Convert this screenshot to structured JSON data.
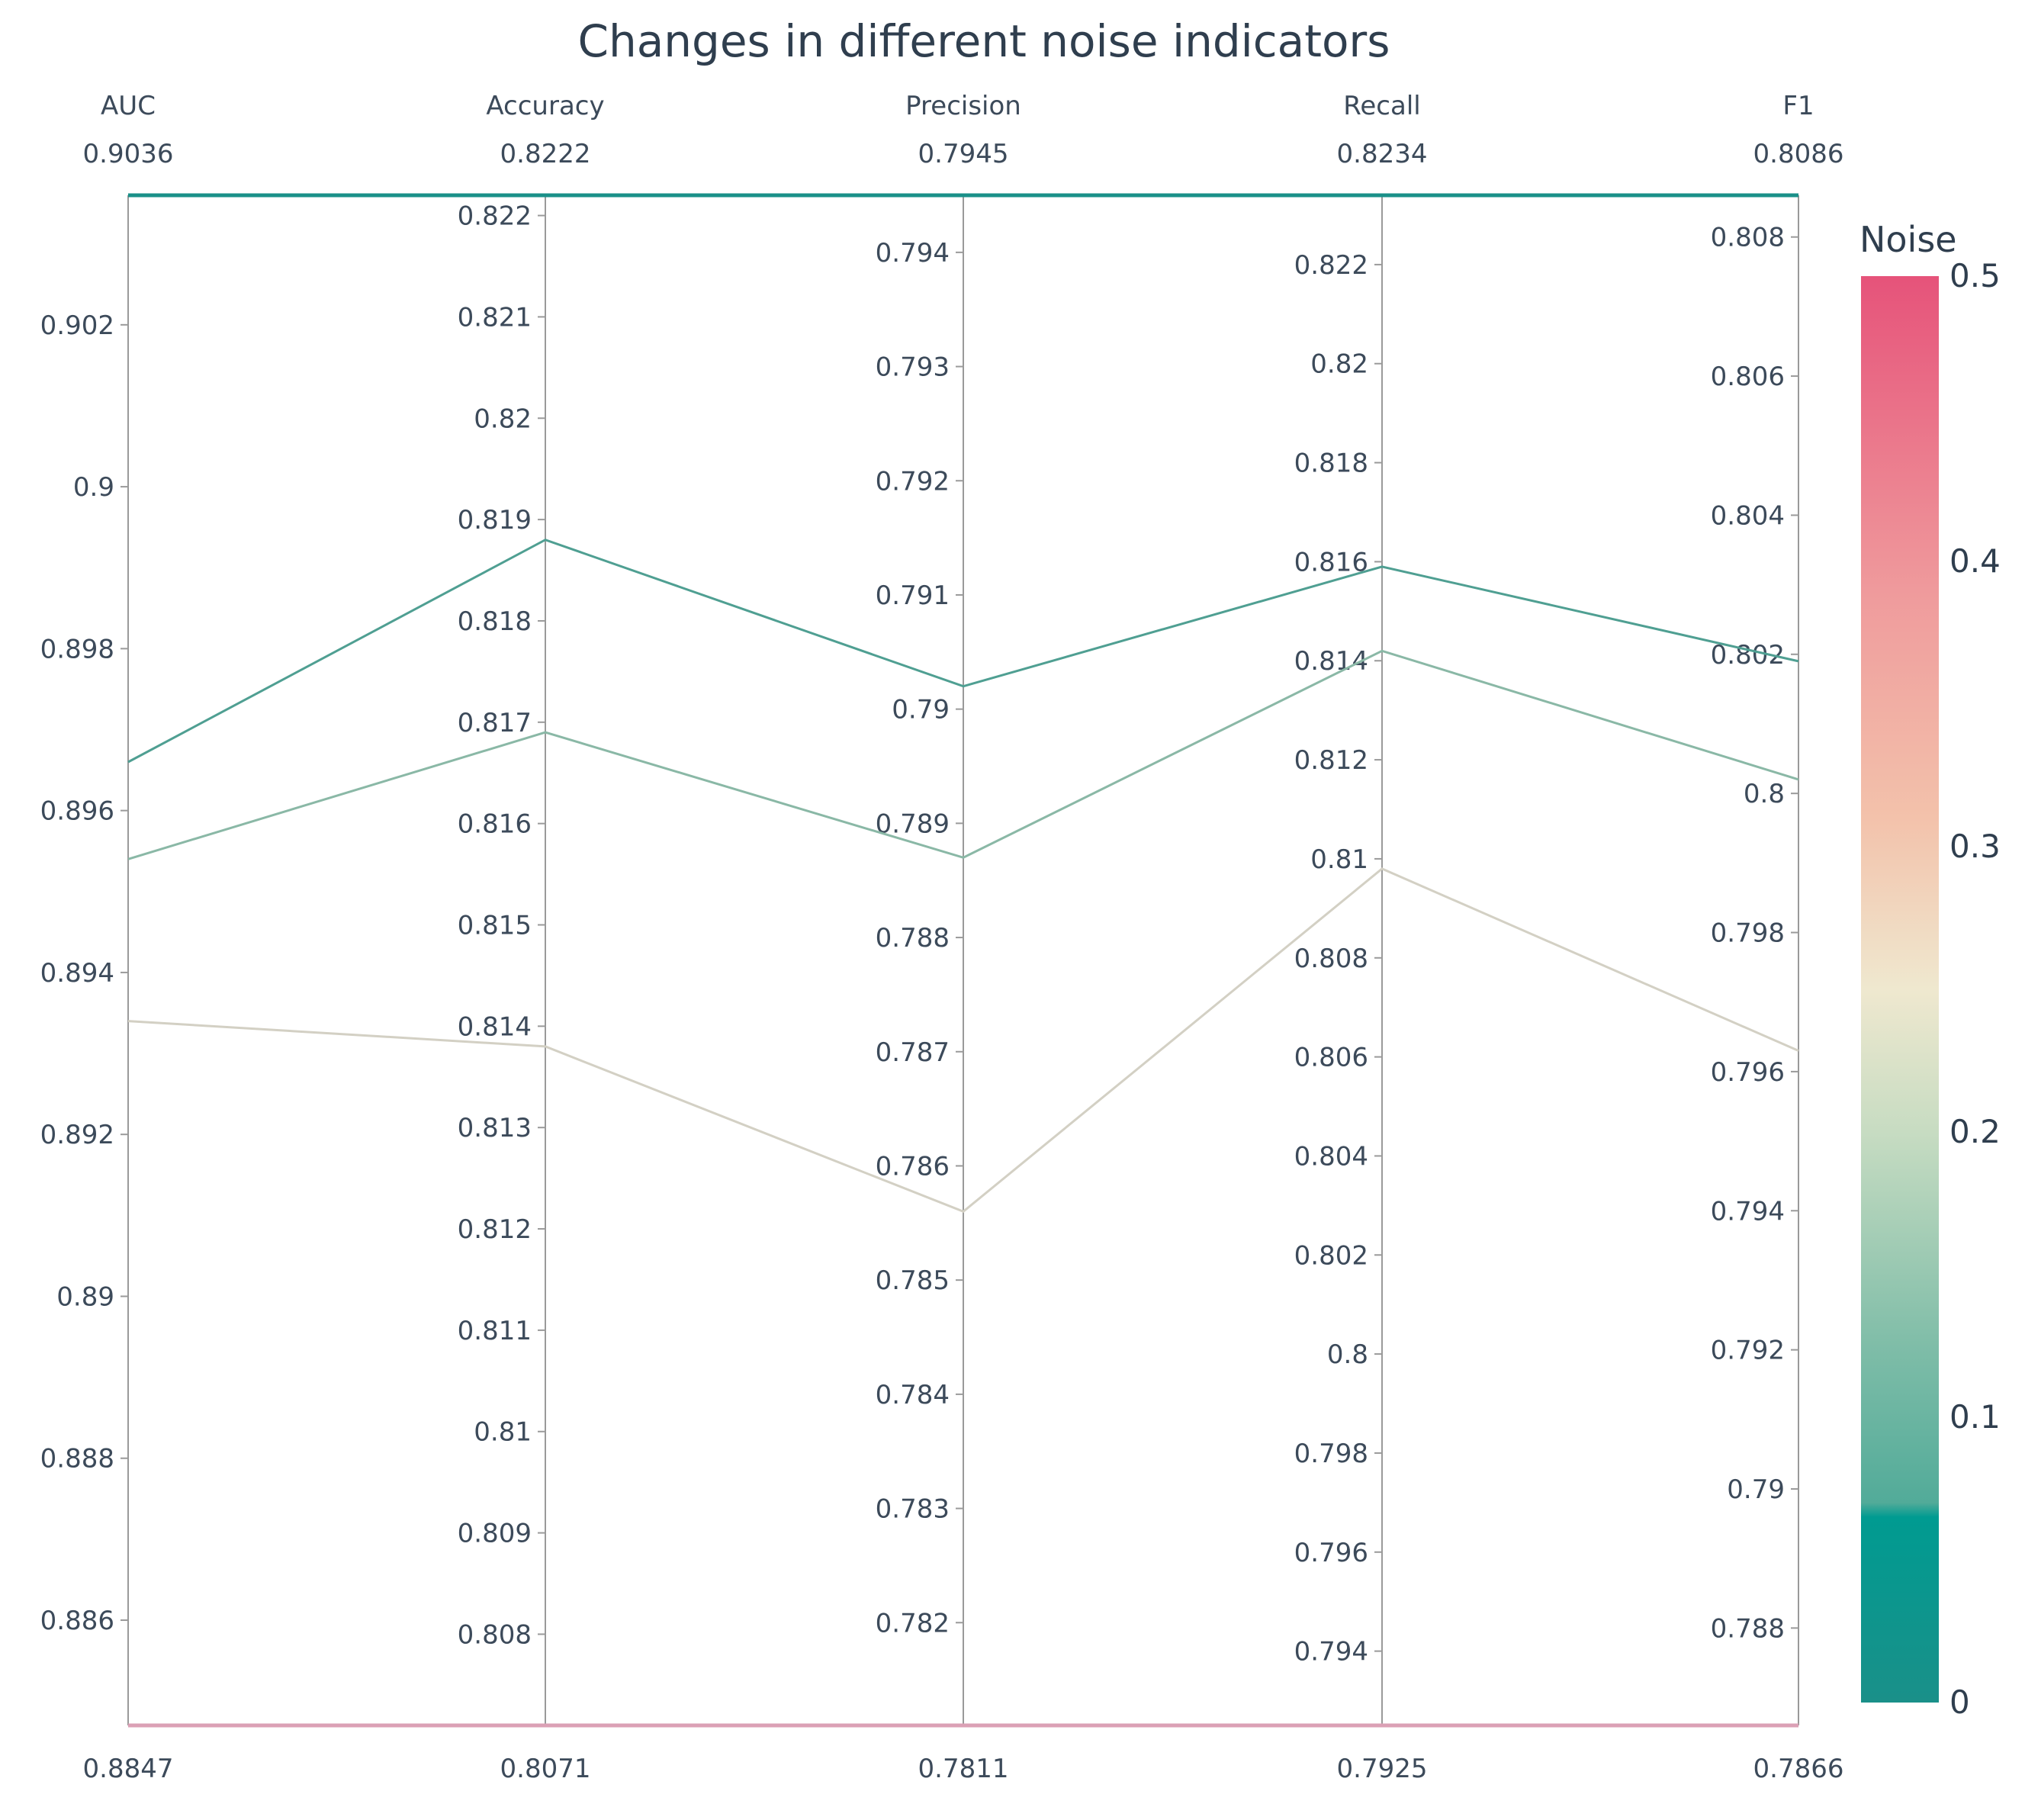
{
  "chart_data": {
    "type": "parallel_coordinates",
    "title": "Changes in different noise indicators",
    "colorbar": {
      "title": "Noise",
      "range": [
        0,
        0.5
      ],
      "ticks": [
        "0",
        "0.1",
        "0.2",
        "0.3",
        "0.4",
        "0.5"
      ],
      "colors": [
        "#1a9089",
        "#009b91",
        "#67b6a3",
        "#a9cfb4",
        "#efe8cf",
        "#f3b49f",
        "#ea8a93",
        "#e6537a"
      ]
    },
    "axes": [
      {
        "label": "AUC",
        "max_label": "0.9036",
        "min_label": "0.8847",
        "range": [
          0.8847,
          0.9036
        ],
        "ticks": [
          "0.886",
          "0.888",
          "0.89",
          "0.892",
          "0.894",
          "0.896",
          "0.898",
          "0.9",
          "0.902"
        ]
      },
      {
        "label": "Accuracy",
        "max_label": "0.8222",
        "min_label": "0.8071",
        "range": [
          0.8071,
          0.8222
        ],
        "ticks": [
          "0.808",
          "0.809",
          "0.81",
          "0.811",
          "0.812",
          "0.813",
          "0.814",
          "0.815",
          "0.816",
          "0.817",
          "0.818",
          "0.819",
          "0.82",
          "0.821",
          "0.822"
        ]
      },
      {
        "label": "Precision",
        "max_label": "0.7945",
        "min_label": "0.7811",
        "range": [
          0.7811,
          0.7945
        ],
        "ticks": [
          "0.782",
          "0.783",
          "0.784",
          "0.785",
          "0.786",
          "0.787",
          "0.788",
          "0.789",
          "0.79",
          "0.791",
          "0.792",
          "0.793",
          "0.794"
        ]
      },
      {
        "label": "Recall",
        "max_label": "0.8234",
        "min_label": "0.7925",
        "range": [
          0.7925,
          0.8234
        ],
        "ticks": [
          "0.794",
          "0.796",
          "0.798",
          "0.8",
          "0.802",
          "0.804",
          "0.806",
          "0.808",
          "0.81",
          "0.812",
          "0.814",
          "0.816",
          "0.818",
          "0.82",
          "0.822"
        ]
      },
      {
        "label": "F1",
        "max_label": "0.8086",
        "min_label": "0.7866",
        "range": [
          0.7866,
          0.8086
        ],
        "ticks": [
          "0.788",
          "0.79",
          "0.792",
          "0.794",
          "0.796",
          "0.798",
          "0.8",
          "0.802",
          "0.804",
          "0.806",
          "0.808"
        ]
      }
    ],
    "lines": [
      {
        "noise": 0.0,
        "values": [
          0.9036,
          0.8222,
          0.7945,
          0.8234,
          0.8086
        ],
        "color": "#1a9089"
      },
      {
        "noise": 0.1,
        "values": [
          0.8966,
          0.8188,
          0.7902,
          0.8159,
          0.8019
        ],
        "color": "#4f9f92"
      },
      {
        "noise": 0.2,
        "values": [
          0.8954,
          0.8169,
          0.7887,
          0.8142,
          0.8002
        ],
        "color": "#8ab8a6"
      },
      {
        "noise": 0.3,
        "values": [
          0.8934,
          0.8138,
          0.7856,
          0.8098,
          0.7963
        ],
        "color": "#d3d0c4"
      },
      {
        "noise": 0.5,
        "values": [
          0.8847,
          0.8071,
          0.7811,
          0.7925,
          0.7866
        ],
        "color": "#dba0b5"
      }
    ]
  }
}
